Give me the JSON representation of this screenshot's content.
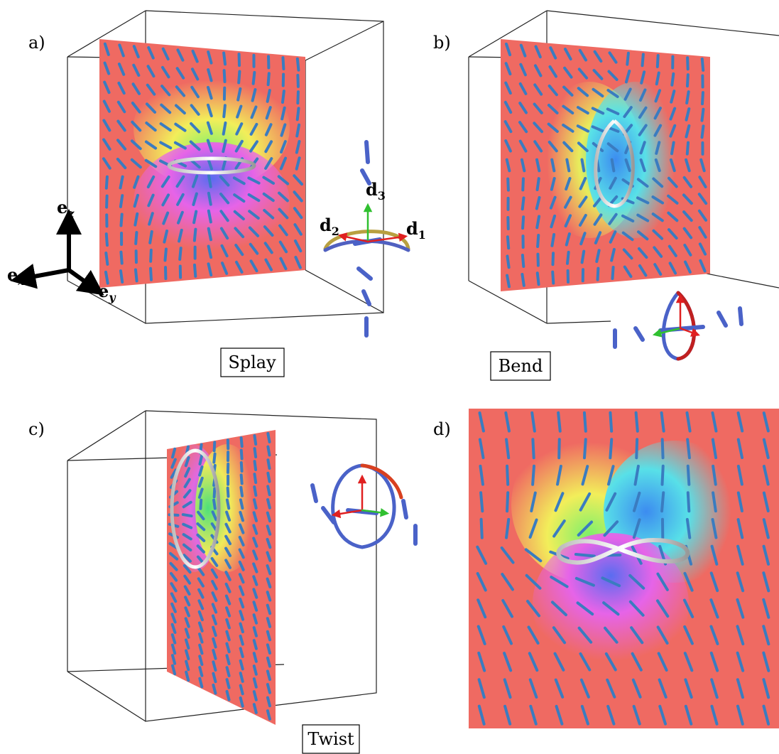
{
  "panels": [
    {
      "label": "a)",
      "caption": "Splay"
    },
    {
      "label": "b)",
      "caption": "Bend"
    },
    {
      "label": "c)",
      "caption": "Twist"
    },
    {
      "label": "d)"
    }
  ],
  "axes": [
    {
      "base": "e",
      "sub": "z"
    },
    {
      "base": "e",
      "sub": "x"
    },
    {
      "base": "e",
      "sub": "y"
    }
  ],
  "frame": [
    {
      "base": "d",
      "sub": "3"
    },
    {
      "base": "d",
      "sub": "2"
    },
    {
      "base": "d",
      "sub": "1"
    }
  ]
}
